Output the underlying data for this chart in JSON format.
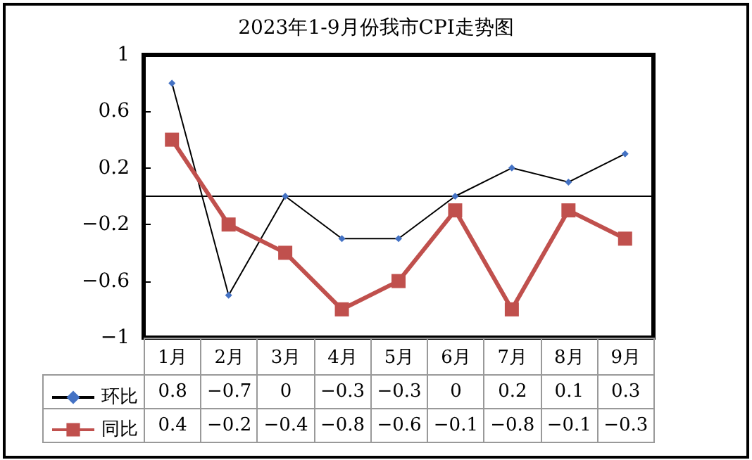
{
  "chart_data": {
    "type": "line",
    "title": "2023年1-9月份我市CPI走势图",
    "categories": [
      "1月",
      "2月",
      "3月",
      "4月",
      "5月",
      "6月",
      "7月",
      "8月",
      "9月"
    ],
    "series": [
      {
        "name": "环比",
        "color": "#000000",
        "colors": [
          "#4472c4",
          "#4472c4",
          "#4472c4",
          "#4472c4",
          "#4472c4",
          "#4472c4",
          "#4472c4",
          "#4472c4",
          "#4472c4"
        ],
        "marker": "diamond",
        "values": [
          0.8,
          -0.7,
          0,
          -0.3,
          -0.3,
          0,
          0.2,
          0.1,
          0.3
        ],
        "value_labels": [
          "0.8",
          "−0.7",
          "0",
          "−0.3",
          "−0.3",
          "0",
          "0.2",
          "0.1",
          "0.3"
        ]
      },
      {
        "name": "同比",
        "color": "#c0504d",
        "marker": "square",
        "values": [
          0.4,
          -0.2,
          -0.4,
          -0.8,
          -0.6,
          -0.1,
          -0.8,
          -0.1,
          -0.3
        ],
        "value_labels": [
          "0.4",
          "−0.2",
          "−0.4",
          "−0.8",
          "−0.6",
          "−0.1",
          "−0.8",
          "−0.1",
          "−0.3"
        ]
      }
    ],
    "ylim": [
      -1,
      1
    ],
    "yticks": [
      {
        "value": -1,
        "label": "−1"
      },
      {
        "value": -0.6,
        "label": "−0.6"
      },
      {
        "value": -0.2,
        "label": "−0.2"
      },
      0.2,
      0.6,
      1
    ],
    "grid": false,
    "legend": "bottom left"
  }
}
